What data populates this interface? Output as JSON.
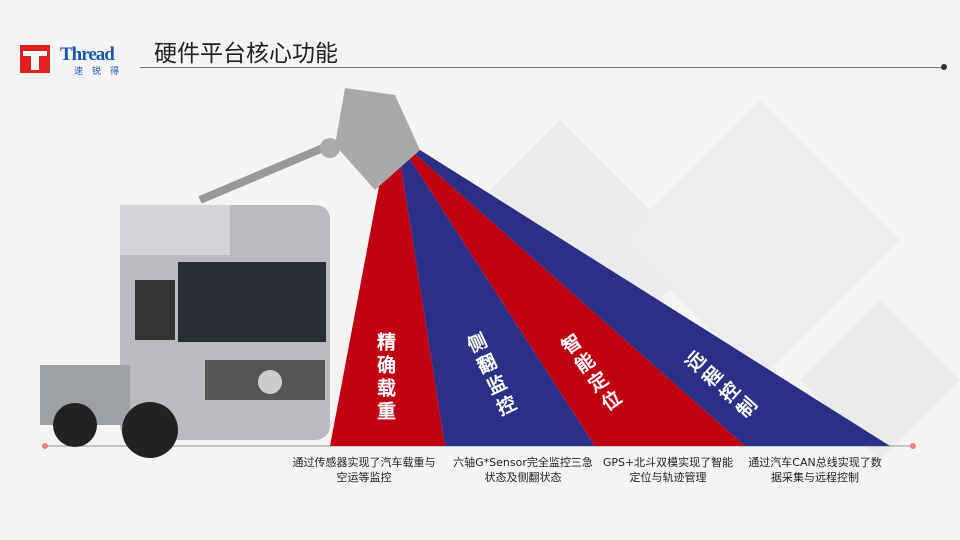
{
  "header": {
    "title": "硬件平台核心功能",
    "logo_text": "Thread",
    "logo_cn": "速锐得"
  },
  "colors": {
    "red": "#c00010",
    "blue": "#2b2f85",
    "brand": "#1d56a8"
  },
  "segments": [
    {
      "label": "精确载重",
      "caption": "通过传感器实现了汽车载重与空运等监控",
      "color": "#c00010"
    },
    {
      "label": "侧翻监控",
      "caption": "六轴G*Sensor完全监控三急状态及侧翻状态",
      "color": "#2b2f85"
    },
    {
      "label": "智能定位",
      "caption": "GPS+北斗双模实现了智能定位与轨迹管理",
      "color": "#c00010"
    },
    {
      "label": "远程控制",
      "caption": "通过汽车CAN总线实现了数据采集与远程控制",
      "color": "#2b2f85"
    }
  ]
}
